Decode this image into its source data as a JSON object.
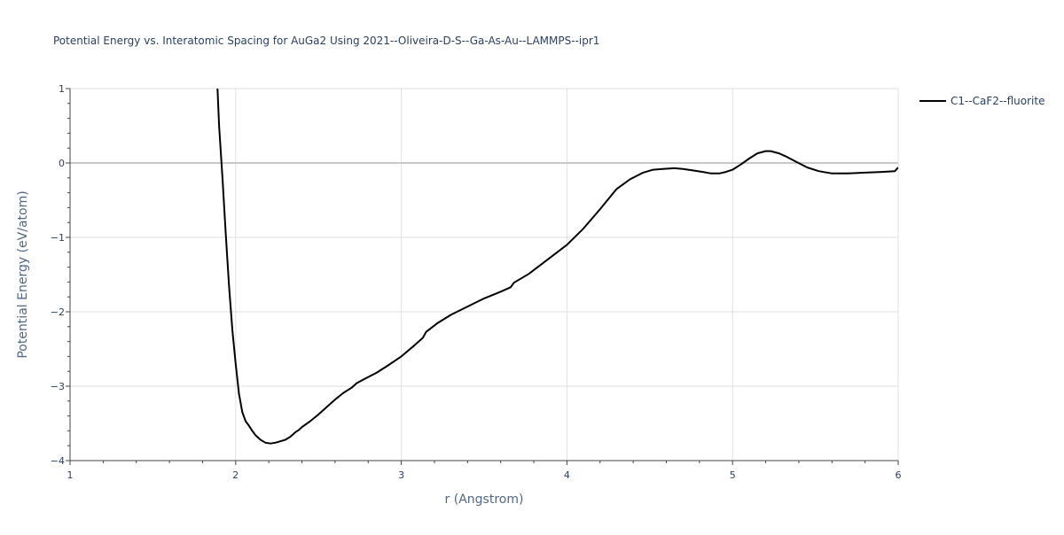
{
  "chart_data": {
    "type": "line",
    "title": "Potential Energy vs. Interatomic Spacing for AuGa2 Using 2021--Oliveira-D-S--Ga-As-Au--LAMMPS--ipr1",
    "xlabel": "r (Angstrom)",
    "ylabel": "Potential Energy (eV/atom)",
    "xlim": [
      1,
      6
    ],
    "ylim": [
      -4,
      1
    ],
    "xticks": [
      1,
      2,
      3,
      4,
      5,
      6
    ],
    "xtick_labels": [
      "1",
      "2",
      "3",
      "4",
      "5",
      "6"
    ],
    "yticks": [
      1,
      0,
      -1,
      -2,
      -3,
      -4
    ],
    "ytick_labels": [
      "1",
      "0",
      "−1",
      "−2",
      "−3",
      "−4"
    ],
    "grid": true,
    "legend_position": "top-right",
    "series": [
      {
        "name": "C1--CaF2--fluorite",
        "color": "#000000",
        "x": [
          1.89,
          1.9,
          1.92,
          1.94,
          1.96,
          1.98,
          2.0,
          2.02,
          2.04,
          2.06,
          2.08,
          2.1,
          2.12,
          2.15,
          2.18,
          2.21,
          2.24,
          2.27,
          2.3,
          2.33,
          2.36,
          2.38,
          2.4,
          2.45,
          2.5,
          2.55,
          2.6,
          2.65,
          2.7,
          2.73,
          2.78,
          2.85,
          2.92,
          3.0,
          3.08,
          3.13,
          3.15,
          3.22,
          3.3,
          3.4,
          3.5,
          3.6,
          3.66,
          3.68,
          3.77,
          3.87,
          4.0,
          4.1,
          4.2,
          4.3,
          4.38,
          4.46,
          4.52,
          4.58,
          4.65,
          4.7,
          4.76,
          4.82,
          4.87,
          4.92,
          4.96,
          5.0,
          5.05,
          5.1,
          5.15,
          5.2,
          5.23,
          5.28,
          5.32,
          5.38,
          5.45,
          5.52,
          5.6,
          5.7,
          5.8,
          5.9,
          5.98,
          6.0
        ],
        "y": [
          1.0,
          0.5,
          -0.2,
          -0.95,
          -1.65,
          -2.25,
          -2.7,
          -3.1,
          -3.35,
          -3.47,
          -3.53,
          -3.6,
          -3.66,
          -3.72,
          -3.76,
          -3.77,
          -3.76,
          -3.74,
          -3.72,
          -3.68,
          -3.62,
          -3.59,
          -3.55,
          -3.47,
          -3.38,
          -3.28,
          -3.18,
          -3.09,
          -3.02,
          -2.96,
          -2.9,
          -2.82,
          -2.72,
          -2.6,
          -2.45,
          -2.35,
          -2.27,
          -2.15,
          -2.04,
          -1.93,
          -1.82,
          -1.73,
          -1.67,
          -1.61,
          -1.49,
          -1.32,
          -1.1,
          -0.88,
          -0.62,
          -0.35,
          -0.22,
          -0.13,
          -0.09,
          -0.08,
          -0.07,
          -0.08,
          -0.1,
          -0.12,
          -0.14,
          -0.14,
          -0.12,
          -0.09,
          -0.02,
          0.06,
          0.13,
          0.16,
          0.16,
          0.13,
          0.09,
          0.02,
          -0.06,
          -0.11,
          -0.14,
          -0.14,
          -0.13,
          -0.12,
          -0.11,
          -0.06
        ]
      }
    ]
  }
}
